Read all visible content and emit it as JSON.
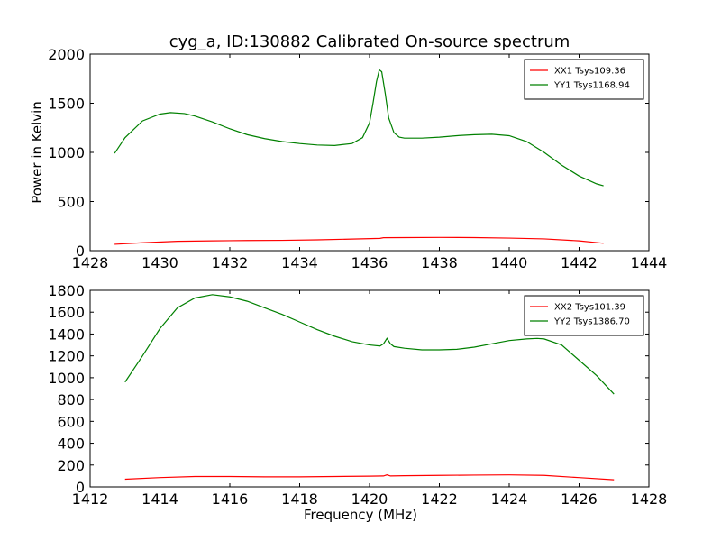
{
  "figure": {
    "title": "cyg_a, ID:130882 Calibrated On-source spectrum"
  },
  "chart_data": [
    {
      "type": "line",
      "title": "cyg_a, ID:130882 Calibrated On-source spectrum",
      "xlabel": "",
      "ylabel": "Power in Kelvin",
      "xlim": [
        1428,
        1444
      ],
      "ylim": [
        0,
        2000
      ],
      "xticks": [
        1428,
        1430,
        1432,
        1434,
        1436,
        1438,
        1440,
        1442,
        1444
      ],
      "yticks": [
        0,
        500,
        1000,
        1500,
        2000
      ],
      "grid": false,
      "legend_position": "top-right",
      "series": [
        {
          "name": "XX1 Tsys109.36",
          "color": "#ff0000",
          "x": [
            1428.7,
            1429.5,
            1430.5,
            1431.5,
            1432.5,
            1433.5,
            1434.5,
            1435.5,
            1436.3,
            1436.4,
            1437.0,
            1438.0,
            1439.0,
            1440.0,
            1441.0,
            1442.0,
            1442.7
          ],
          "y": [
            65,
            80,
            95,
            100,
            103,
            105,
            110,
            118,
            125,
            132,
            133,
            135,
            133,
            128,
            120,
            100,
            75
          ]
        },
        {
          "name": "YY1 Tsys1168.94",
          "color": "#008000",
          "x": [
            1428.7,
            1429.0,
            1429.5,
            1430.0,
            1430.3,
            1430.7,
            1431.0,
            1431.5,
            1432.0,
            1432.5,
            1433.0,
            1433.5,
            1434.0,
            1434.5,
            1435.0,
            1435.5,
            1435.8,
            1436.0,
            1436.1,
            1436.2,
            1436.28,
            1436.35,
            1436.45,
            1436.55,
            1436.7,
            1436.85,
            1437.0,
            1437.5,
            1438.0,
            1438.5,
            1439.0,
            1439.5,
            1440.0,
            1440.5,
            1441.0,
            1441.5,
            1442.0,
            1442.5,
            1442.7
          ],
          "y": [
            990,
            1150,
            1320,
            1390,
            1405,
            1395,
            1370,
            1310,
            1240,
            1180,
            1140,
            1110,
            1090,
            1075,
            1070,
            1090,
            1150,
            1300,
            1500,
            1720,
            1840,
            1820,
            1600,
            1350,
            1200,
            1155,
            1145,
            1145,
            1155,
            1170,
            1180,
            1185,
            1170,
            1110,
            1000,
            870,
            760,
            680,
            660
          ]
        }
      ]
    },
    {
      "type": "line",
      "title": "",
      "xlabel": "Frequency (MHz)",
      "ylabel": "",
      "xlim": [
        1412,
        1428
      ],
      "ylim": [
        0,
        1800
      ],
      "xticks": [
        1412,
        1414,
        1416,
        1418,
        1420,
        1422,
        1424,
        1426,
        1428
      ],
      "yticks": [
        0,
        200,
        400,
        600,
        800,
        1000,
        1200,
        1400,
        1600,
        1800
      ],
      "grid": false,
      "legend_position": "top-right",
      "series": [
        {
          "name": "XX2 Tsys101.39",
          "color": "#ff0000",
          "x": [
            1413.0,
            1414.0,
            1415.0,
            1416.0,
            1417.0,
            1418.0,
            1419.0,
            1420.0,
            1420.4,
            1420.5,
            1420.6,
            1421.0,
            1422.0,
            1423.0,
            1424.0,
            1425.0,
            1426.0,
            1427.0
          ],
          "y": [
            70,
            85,
            95,
            95,
            92,
            92,
            95,
            98,
            100,
            110,
            100,
            102,
            105,
            108,
            110,
            105,
            85,
            65
          ]
        },
        {
          "name": "YY2 Tsys1386.70",
          "color": "#008000",
          "x": [
            1413.0,
            1413.5,
            1414.0,
            1414.5,
            1415.0,
            1415.5,
            1416.0,
            1416.5,
            1417.0,
            1417.5,
            1418.0,
            1418.5,
            1419.0,
            1419.5,
            1420.0,
            1420.3,
            1420.4,
            1420.5,
            1420.6,
            1420.7,
            1421.0,
            1421.5,
            1422.0,
            1422.5,
            1423.0,
            1423.5,
            1424.0,
            1424.5,
            1424.8,
            1425.0,
            1425.5,
            1426.0,
            1426.5,
            1427.0
          ],
          "y": [
            960,
            1200,
            1450,
            1640,
            1730,
            1760,
            1740,
            1700,
            1640,
            1580,
            1510,
            1440,
            1380,
            1330,
            1300,
            1290,
            1310,
            1360,
            1310,
            1285,
            1270,
            1255,
            1255,
            1260,
            1280,
            1310,
            1340,
            1355,
            1360,
            1355,
            1300,
            1160,
            1020,
            850
          ]
        }
      ]
    }
  ]
}
